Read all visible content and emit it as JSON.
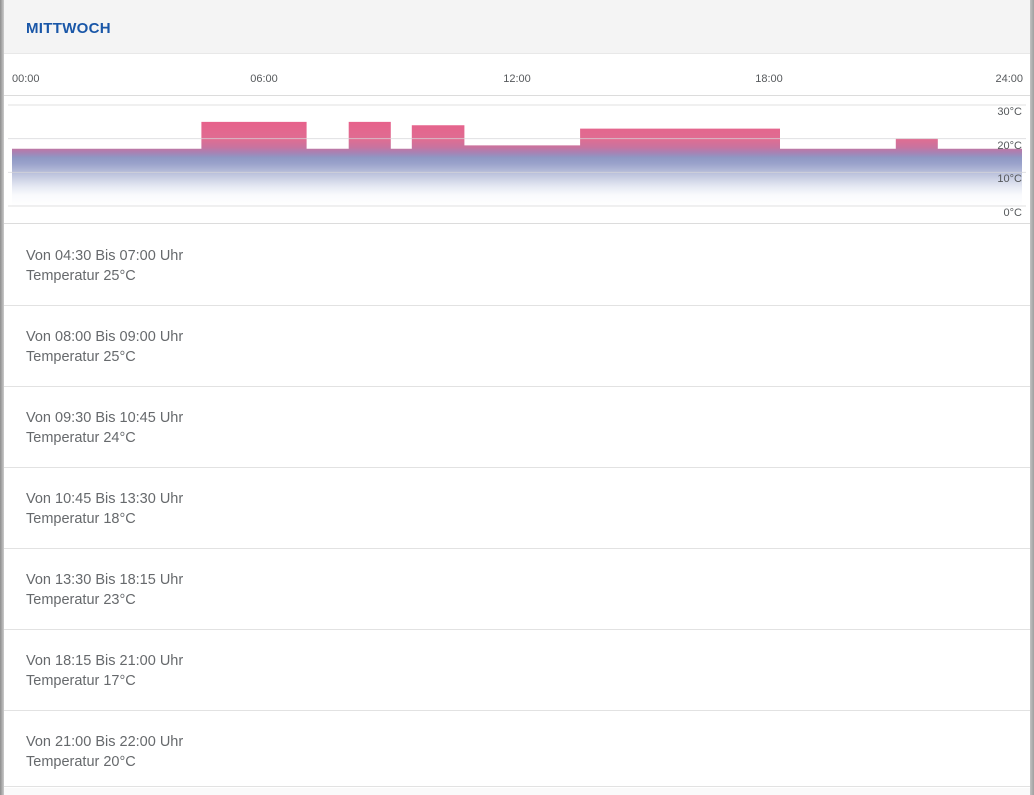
{
  "header": {
    "title": "MITTWOCH"
  },
  "chart_data": {
    "type": "area",
    "x_axis": {
      "unit": "time",
      "range_hours": [
        0,
        24
      ],
      "tick_hours": [
        0,
        6,
        12,
        18,
        24
      ],
      "tick_labels": [
        "00:00",
        "06:00",
        "12:00",
        "18:00",
        "24:00"
      ]
    },
    "y_axis": {
      "unit": "°C",
      "range": [
        0,
        30
      ],
      "ticks": [
        30,
        20,
        10,
        0
      ],
      "tick_labels": [
        "30°C",
        "20°C",
        "10°C",
        "0°C"
      ],
      "grid": true
    },
    "base_temperature_c": 17,
    "steps": [
      {
        "from": "00:00",
        "to": "04:30",
        "temp_c": 17
      },
      {
        "from": "04:30",
        "to": "07:00",
        "temp_c": 25
      },
      {
        "from": "07:00",
        "to": "08:00",
        "temp_c": 17
      },
      {
        "from": "08:00",
        "to": "09:00",
        "temp_c": 25
      },
      {
        "from": "09:00",
        "to": "09:30",
        "temp_c": 17
      },
      {
        "from": "09:30",
        "to": "10:45",
        "temp_c": 24
      },
      {
        "from": "10:45",
        "to": "13:30",
        "temp_c": 18
      },
      {
        "from": "13:30",
        "to": "18:15",
        "temp_c": 23
      },
      {
        "from": "18:15",
        "to": "21:00",
        "temp_c": 17
      },
      {
        "from": "21:00",
        "to": "22:00",
        "temp_c": 20
      },
      {
        "from": "22:00",
        "to": "24:00",
        "temp_c": 17
      }
    ],
    "colors": {
      "gridline": "#d6d6d8",
      "gradient_stops": [
        {
          "offset": 0.0,
          "color": "#e7618b"
        },
        {
          "offset": 0.21,
          "color": "#df6d92"
        },
        {
          "offset": 0.3,
          "color": "#c8739f"
        },
        {
          "offset": 0.37,
          "color": "#a683b5"
        },
        {
          "offset": 0.425,
          "color": "#8f98c4"
        },
        {
          "offset": 0.5,
          "color": "#9ba3cb"
        },
        {
          "offset": 0.63,
          "color": "#c0c6de"
        },
        {
          "offset": 0.77,
          "color": "#e6e9f3"
        },
        {
          "offset": 0.87,
          "color": "#f9fafd"
        },
        {
          "offset": 1.0,
          "color": "#ffffff"
        }
      ]
    }
  },
  "schedule": {
    "items": [
      {
        "range": "Von 04:30 Bis 07:00 Uhr",
        "temperature": "Temperatur 25°C"
      },
      {
        "range": "Von 08:00 Bis 09:00 Uhr",
        "temperature": "Temperatur 25°C"
      },
      {
        "range": "Von 09:30 Bis 10:45 Uhr",
        "temperature": "Temperatur 24°C"
      },
      {
        "range": "Von 10:45 Bis 13:30 Uhr",
        "temperature": "Temperatur 18°C"
      },
      {
        "range": "Von 13:30 Bis 18:15 Uhr",
        "temperature": "Temperatur 23°C"
      },
      {
        "range": "Von 18:15 Bis 21:00 Uhr",
        "temperature": "Temperatur 17°C"
      },
      {
        "range": "Von 21:00 Bis 22:00 Uhr",
        "temperature": "Temperatur 20°C"
      }
    ]
  }
}
